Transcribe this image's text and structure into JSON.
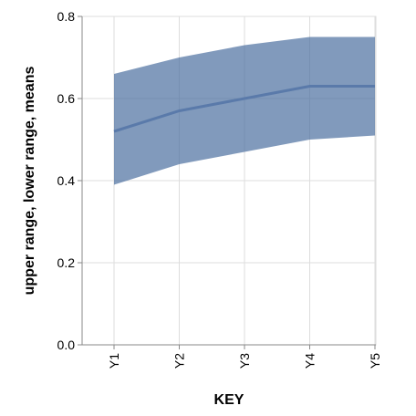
{
  "chart_data": {
    "type": "area",
    "categories": [
      "Y1",
      "Y2",
      "Y3",
      "Y4",
      "Y5"
    ],
    "series": [
      {
        "name": "upper range",
        "values": [
          0.66,
          0.7,
          0.73,
          0.75,
          0.75
        ]
      },
      {
        "name": "lower range",
        "values": [
          0.39,
          0.44,
          0.47,
          0.5,
          0.51
        ]
      },
      {
        "name": "means",
        "values": [
          0.52,
          0.57,
          0.6,
          0.63,
          0.63
        ]
      }
    ],
    "xlabel": "KEY",
    "ylabel": "upper range, lower range, means",
    "ylim": [
      0,
      0.8
    ],
    "yticks": [
      "0.0",
      "0.2",
      "0.4",
      "0.6",
      "0.8"
    ],
    "grid": true,
    "colors": {
      "band": "#4c6f9f",
      "line": "#5a7aaa"
    }
  }
}
